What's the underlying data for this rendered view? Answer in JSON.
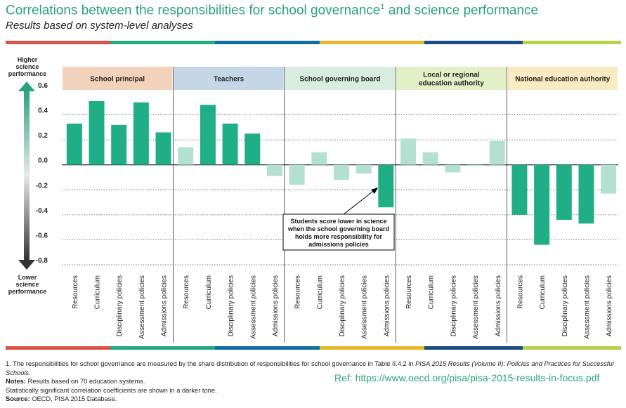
{
  "header": {
    "title": "Correlations between the responsibilities for school governance",
    "title_sup": "1",
    "title_tail": " and science performance",
    "subtitle": "Results based on system-level analyses"
  },
  "axis_labels": {
    "top": [
      "Higher",
      "science",
      "performance"
    ],
    "bottom": [
      "Lower",
      "science",
      "performance"
    ]
  },
  "annotation": {
    "lines": [
      "Students score lower in science",
      "when the school governing board",
      "holds more responsibility for",
      "admissions policies"
    ]
  },
  "footnotes": {
    "note1_a": "1. The responsibilities for school governance are measured by the share distribution of responsibilities for school governance in Table II.4.2 in ",
    "note1_italic": "PISA 2015 Results (Volume II): Policies and Practices for Successful Schools",
    "note1_end": ".",
    "notes_label": "Notes:",
    "notes_text": " Results based on 70 education systems.",
    "notes_line2": "Statistically significant correlation coefficients are shown in a darker tone.",
    "source_label": "Source:",
    "source_text": " OECD, PISA 2015 Database."
  },
  "reference": "Ref:  https://www.oecd.org/pisa/pisa-2015-results-in-focus.pdf",
  "colors": {
    "significant": "#1fae85",
    "not_significant": "#b3e0d1",
    "stripe": [
      "#d9534a",
      "#23a884",
      "#0f6fa0",
      "#e4b92b",
      "#1c4c85",
      "#b4d44c"
    ]
  },
  "chart_data": {
    "type": "bar",
    "ylim": [
      -0.8,
      0.6
    ],
    "yticks": [
      "0.6",
      "0.4",
      "0.2",
      "0.0",
      "-0.2",
      "-0.4",
      "-0.6",
      "-0.8"
    ],
    "ytick_values": [
      0.6,
      0.4,
      0.2,
      0.0,
      -0.2,
      -0.4,
      -0.6,
      -0.8
    ],
    "categories": [
      "Resources",
      "Curriculum",
      "Disciplinary policies",
      "Assessment policies",
      "Admissions policies"
    ],
    "groups": [
      {
        "name": "School principal",
        "color": "#f3d2bb",
        "values": [
          0.33,
          0.51,
          0.32,
          0.5,
          0.26
        ],
        "significant": [
          true,
          true,
          true,
          true,
          true
        ]
      },
      {
        "name": "Teachers",
        "color": "#c5d7e6",
        "values": [
          0.14,
          0.48,
          0.33,
          0.25,
          -0.09
        ],
        "significant": [
          false,
          true,
          true,
          true,
          false
        ]
      },
      {
        "name": "School governing board",
        "color": "#d8ecdf",
        "values": [
          -0.16,
          0.1,
          -0.12,
          -0.07,
          -0.34
        ],
        "significant": [
          false,
          false,
          false,
          false,
          true
        ]
      },
      {
        "name": "Local or regional education authority",
        "label_lines": [
          "Local or regional",
          "education authority"
        ],
        "color": "#e3efc6",
        "values": [
          0.21,
          0.1,
          -0.06,
          -0.01,
          0.19
        ],
        "significant": [
          false,
          false,
          false,
          false,
          false
        ]
      },
      {
        "name": "National education authority",
        "color": "#f8ebc2",
        "values": [
          -0.4,
          -0.64,
          -0.44,
          -0.47,
          -0.23
        ],
        "significant": [
          true,
          true,
          true,
          true,
          false
        ]
      }
    ]
  }
}
